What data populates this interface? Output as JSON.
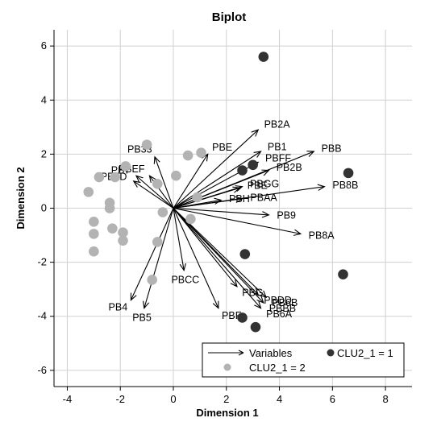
{
  "chart_data": {
    "type": "scatter",
    "title": "Biplot",
    "xlabel": "Dimension 1",
    "ylabel": "Dimension 2",
    "xlim": [
      -4.5,
      9
    ],
    "ylim": [
      -6.6,
      6.6
    ],
    "xticks": [
      -4,
      -2,
      0,
      2,
      4,
      6,
      8
    ],
    "yticks": [
      -6,
      -4,
      -2,
      0,
      2,
      4,
      6
    ],
    "grid": true,
    "legend_position": "bottom-right",
    "legend": {
      "variables_label": "Variables",
      "cluster1_label": "CLU2_1 = 1",
      "cluster2_label": "CLU2_1 = 2"
    },
    "colors": {
      "cluster1": "#333333",
      "cluster2": "#b3b3b3",
      "arrow": "#000000"
    },
    "variables": [
      {
        "name": "PB2A",
        "x": 3.2,
        "y": 2.9
      },
      {
        "name": "PB1",
        "x": 3.3,
        "y": 2.1
      },
      {
        "name": "PBFF",
        "x": 3.2,
        "y": 1.7
      },
      {
        "name": "PBB",
        "x": 5.3,
        "y": 2.1
      },
      {
        "name": "PB2B",
        "x": 3.6,
        "y": 1.4
      },
      {
        "name": "PB8B",
        "x": 5.7,
        "y": 0.8
      },
      {
        "name": "PBGG",
        "x": 2.6,
        "y": 0.8
      },
      {
        "name": "PBE",
        "x": 1.3,
        "y": 2.0
      },
      {
        "name": "PBE",
        "x": 2.5,
        "y": 0.75
      },
      {
        "name": "PBAA",
        "x": 2.6,
        "y": 0.35
      },
      {
        "name": "PBH",
        "x": 1.8,
        "y": 0.3
      },
      {
        "name": "PB9",
        "x": 3.6,
        "y": -0.25
      },
      {
        "name": "PB8A",
        "x": 4.8,
        "y": -0.95
      },
      {
        "name": "PB33",
        "x": -0.7,
        "y": 1.9
      },
      {
        "name": "PBEF",
        "x": -0.9,
        "y": 1.2
      },
      {
        "name": "PB7",
        "x": -1.4,
        "y": 1.2
      },
      {
        "name": "PB5D",
        "x": -1.5,
        "y": 1.0
      },
      {
        "name": "PBG",
        "x": 2.4,
        "y": -2.9
      },
      {
        "name": "PBDD",
        "x": 3.2,
        "y": -3.2
      },
      {
        "name": "PB6B",
        "x": 3.5,
        "y": -3.3
      },
      {
        "name": "PBBB",
        "x": 3.4,
        "y": -3.5
      },
      {
        "name": "PB6A",
        "x": 3.3,
        "y": -3.7
      },
      {
        "name": "PBF",
        "x": 1.7,
        "y": -3.7
      },
      {
        "name": "PBCC",
        "x": 0.4,
        "y": -2.3
      },
      {
        "name": "PB4",
        "x": -1.6,
        "y": -3.4
      },
      {
        "name": "PB5",
        "x": -1.1,
        "y": -3.7
      }
    ],
    "cluster1": [
      {
        "x": 3.4,
        "y": 5.6
      },
      {
        "x": 2.6,
        "y": 1.4
      },
      {
        "x": 3.0,
        "y": 1.6
      },
      {
        "x": 6.6,
        "y": 1.3
      },
      {
        "x": 2.7,
        "y": -1.7
      },
      {
        "x": 6.4,
        "y": -2.45
      },
      {
        "x": 2.6,
        "y": -4.05
      },
      {
        "x": 3.1,
        "y": -4.4
      }
    ],
    "cluster2": [
      {
        "x": -1.0,
        "y": 2.35
      },
      {
        "x": 0.55,
        "y": 1.95
      },
      {
        "x": 1.05,
        "y": 2.05
      },
      {
        "x": -1.8,
        "y": 1.55
      },
      {
        "x": -2.8,
        "y": 1.15
      },
      {
        "x": -2.2,
        "y": 1.15
      },
      {
        "x": -0.6,
        "y": 0.9
      },
      {
        "x": 0.1,
        "y": 1.2
      },
      {
        "x": -3.2,
        "y": 0.6
      },
      {
        "x": -2.4,
        "y": 0.2
      },
      {
        "x": -2.4,
        "y": 0.0
      },
      {
        "x": 0.9,
        "y": 0.4
      },
      {
        "x": -0.4,
        "y": -0.15
      },
      {
        "x": 0.65,
        "y": -0.4
      },
      {
        "x": -3.0,
        "y": -0.5
      },
      {
        "x": -2.3,
        "y": -0.75
      },
      {
        "x": -1.9,
        "y": -0.9
      },
      {
        "x": -3.0,
        "y": -0.95
      },
      {
        "x": -1.9,
        "y": -1.2
      },
      {
        "x": -0.6,
        "y": -1.25
      },
      {
        "x": -3.0,
        "y": -1.6
      },
      {
        "x": -0.8,
        "y": -2.65
      }
    ]
  }
}
